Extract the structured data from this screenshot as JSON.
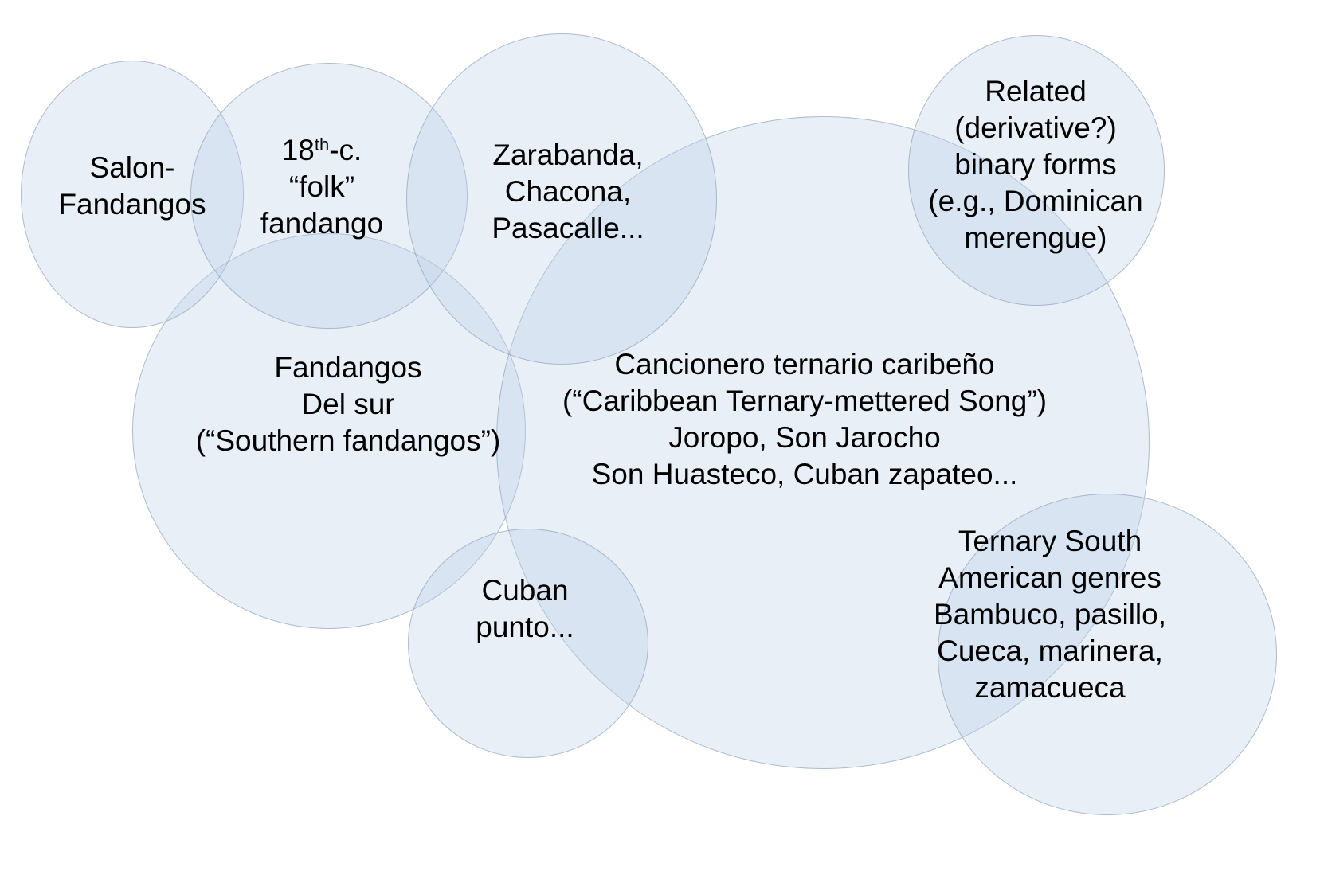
{
  "colors": {
    "background": "#ffffff",
    "circle_fill": "#e8eff7",
    "circle_overlap": "#d9e4f2",
    "circle_stroke": "#b8c2cf",
    "text": "#000000"
  },
  "circles": [
    {
      "id": "salon-fandangos",
      "lines": [
        "Salon-",
        "Fandangos"
      ]
    },
    {
      "id": "folk-fandango",
      "line1": {
        "base": "18",
        "superscript": "th",
        "rest": "-c."
      },
      "lines": [
        "“folk”",
        "fandango"
      ]
    },
    {
      "id": "zarabanda",
      "lines": [
        "Zarabanda,",
        "Chacona,",
        "Pasacalle..."
      ]
    },
    {
      "id": "related-binary-forms",
      "lines": [
        "Related",
        "(derivative?)",
        "binary forms",
        "(e.g., Dominican",
        "merengue)"
      ]
    },
    {
      "id": "fandangos-del-sur",
      "lines": [
        "Fandangos",
        "Del sur",
        "(“Southern fandangos”)"
      ]
    },
    {
      "id": "cancionero-ternario-caribeno",
      "lines": [
        "Cancionero ternario caribeño",
        "(“Caribbean Ternary-mettered Song”)",
        "Joropo, Son Jarocho",
        "Son Huasteco, Cuban zapateo..."
      ]
    },
    {
      "id": "cuban-punto",
      "lines": [
        "Cuban",
        "punto..."
      ]
    },
    {
      "id": "ternary-south-american-genres",
      "lines": [
        "Ternary South",
        "American genres",
        "Bambuco, pasillo,",
        "Cueca, marinera,",
        "zamacueca"
      ]
    }
  ]
}
